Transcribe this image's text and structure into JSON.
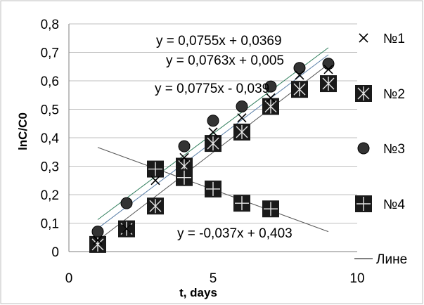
{
  "chart_data": {
    "type": "scatter",
    "title": "",
    "xlabel": "t, days",
    "ylabel": "lnC/C0",
    "xlim": [
      0,
      10
    ],
    "ylim": [
      0,
      0.8
    ],
    "xticks": [
      "0",
      "5",
      "10"
    ],
    "yticks": [
      "0",
      "0,1",
      "0,2",
      "0,3",
      "0,4",
      "0,5",
      "0,6",
      "0,7",
      "0,8"
    ],
    "grid": true,
    "legend_position": "right",
    "series": [
      {
        "name": "№1",
        "marker": "x",
        "color": "#000000",
        "x": [
          1,
          2,
          3,
          4,
          5,
          6,
          7,
          8,
          9
        ],
        "y": [
          0.04,
          0.08,
          0.25,
          0.33,
          0.42,
          0.47,
          0.54,
          0.62,
          0.64
        ]
      },
      {
        "name": "№2",
        "marker": "box-asterisk",
        "color": "#000000",
        "x": [
          1,
          2,
          3,
          4,
          5,
          6,
          7,
          8,
          9
        ],
        "y": [
          0.025,
          0.08,
          0.16,
          0.3,
          0.38,
          0.42,
          0.51,
          0.57,
          0.59
        ]
      },
      {
        "name": "№3",
        "marker": "circle",
        "color": "#000000",
        "x": [
          1,
          2,
          3,
          4,
          5,
          6,
          7,
          8,
          9
        ],
        "y": [
          0.07,
          0.17,
          0.29,
          0.37,
          0.46,
          0.51,
          0.58,
          0.645,
          0.66
        ]
      },
      {
        "name": "№4",
        "marker": "box-plus",
        "color": "#000000",
        "x": [
          3,
          4,
          5,
          6,
          7
        ],
        "y": [
          0.29,
          0.26,
          0.22,
          0.17,
          0.15
        ]
      }
    ],
    "trendlines": [
      {
        "slope": 0.0755,
        "intercept": 0.0369,
        "x_range": [
          1,
          9
        ],
        "color": "#2e7d5b",
        "equation": "y = 0,0755x + 0,0369"
      },
      {
        "slope": 0.0763,
        "intercept": 0.005,
        "x_range": [
          1,
          9
        ],
        "color": "#5a7fa8",
        "equation": "y = 0,0763x + 0,005"
      },
      {
        "slope": 0.0775,
        "intercept": -0.039,
        "x_range": [
          1,
          9
        ],
        "color": "#555555",
        "equation": "y = 0,0775x - 0,039"
      },
      {
        "slope": -0.037,
        "intercept": 0.403,
        "x_range": [
          1,
          9
        ],
        "color": "#555555",
        "equation": "y = -0,037x + 0,403"
      }
    ],
    "legend_line_label": "Лине"
  }
}
